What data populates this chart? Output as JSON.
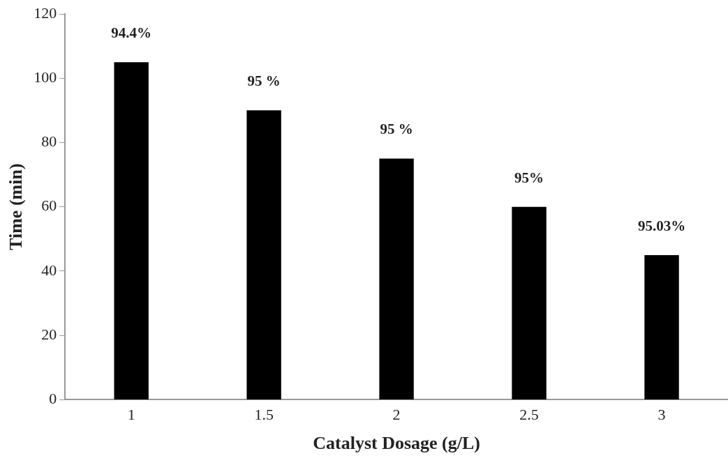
{
  "chart_data": {
    "type": "bar",
    "xlabel": "Catalyst Dosage (g/L)",
    "ylabel": "Time (min)",
    "categories": [
      "1",
      "1.5",
      "2",
      "2.5",
      "3"
    ],
    "values": [
      105,
      90,
      75,
      60,
      45
    ],
    "annotations": [
      {
        "text": "94.4%",
        "x": "1",
        "y": 105
      },
      {
        "text": "95 %",
        "x": "1.5",
        "y": 90
      },
      {
        "text": "95 %",
        "x": "2",
        "y": 75
      },
      {
        "text": "95%",
        "x": "2.5",
        "y": 60
      },
      {
        "text": "95.03%",
        "x": "3",
        "y": 45
      }
    ],
    "color": "#000000",
    "ylim": [
      0,
      120
    ],
    "yticks": [
      0,
      20,
      40,
      60,
      80,
      100,
      120
    ],
    "grid": false,
    "legend": false
  }
}
